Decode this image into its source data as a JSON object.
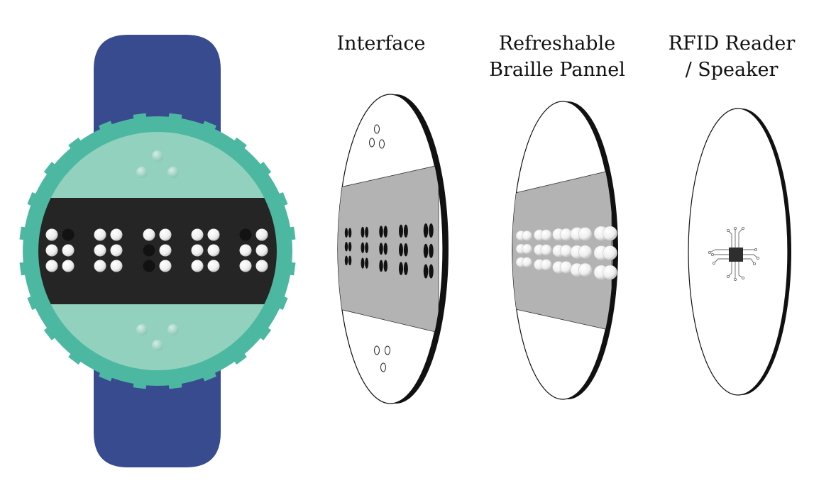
{
  "labels": {
    "interface": [
      "Interface"
    ],
    "braille_panel": [
      "Refreshable",
      "Braille Pannel"
    ],
    "rfid_speaker": [
      "RFID Reader",
      "/ Speaker"
    ]
  },
  "colors": {
    "strap": "#384b8f",
    "bezel": "#4db8a1",
    "face": "#93d1bf",
    "display_band": "#252525",
    "raised_dot": "#f4f4f4",
    "lowered_dot": "#121212",
    "layer_face": "#ffffff",
    "layer_rim": "#111111",
    "braille_band": "#b3b3b3",
    "chip": "#2e2e2e",
    "text": "#111111"
  },
  "icons": {
    "watch": "braille-watch-icon",
    "interface_layer": "interface-disc-icon",
    "panel_layer": "braille-panel-disc-icon",
    "rfid_layer": "rfid-chip-disc-icon"
  },
  "braille_cells": [
    [
      1,
      0,
      1,
      1,
      1,
      1
    ],
    [
      1,
      1,
      1,
      1,
      1,
      1
    ],
    [
      1,
      1,
      0,
      1,
      0,
      1
    ],
    [
      1,
      1,
      1,
      1,
      1,
      1
    ],
    [
      0,
      1,
      1,
      1,
      1,
      1
    ]
  ]
}
